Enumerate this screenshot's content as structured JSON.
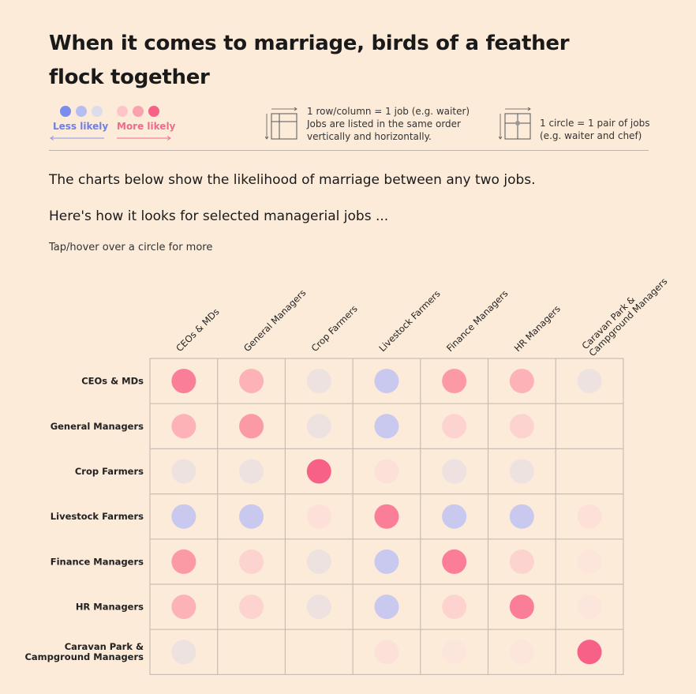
{
  "title": "When it comes to marriage, birds of a feather flock together",
  "legend": {
    "less_label": "Less likely",
    "more_label": "More likely",
    "colors": [
      "#7b8cef",
      "#b6bdf0",
      "#dcdcea",
      "#fcc6c8",
      "#f9a3ad",
      "#f76187"
    ],
    "grid_text": [
      "1 row/column = 1 job (e.g. waiter)",
      "Jobs are listed in the same order",
      "vertically and horizontally."
    ],
    "circle_text": [
      "1 circle = 1 pair of jobs",
      "(e.g. waiter and chef)"
    ]
  },
  "intro": "The charts below show the likelihood of marriage between any two jobs.",
  "intro2": "Here's how it looks for selected managerial jobs ...",
  "hint": "Tap/hover over a circle for more",
  "chart_data": {
    "type": "heatmap",
    "rows": [
      "CEOs & MDs",
      "General Managers",
      "Crop Farmers",
      "Livestock Farmers",
      "Finance Managers",
      "HR Managers",
      "Caravan Park & Campground Managers"
    ],
    "columns": [
      "CEOs & MDs",
      "General Managers",
      "Crop Farmers",
      "Livestock Farmers",
      "Finance Managers",
      "HR Managers",
      "Caravan Park & Campground Managers"
    ],
    "scale": "-3 = much less likely, 0 = neutral, 3 = much more likely; null = no data",
    "values": [
      [
        3,
        2,
        0,
        -2,
        2.5,
        2,
        0
      ],
      [
        2,
        2.5,
        0,
        -2,
        1,
        1,
        null
      ],
      [
        0,
        0,
        3.5,
        0.5,
        0,
        0,
        null
      ],
      [
        -2,
        -2,
        0.5,
        3,
        -2,
        -2,
        0.5
      ],
      [
        2.5,
        1,
        0,
        -2,
        3,
        1,
        0.2
      ],
      [
        2,
        1,
        0,
        -2,
        1,
        3,
        0.2
      ],
      [
        0,
        null,
        null,
        0.5,
        0.2,
        0.2,
        3.5
      ]
    ]
  }
}
